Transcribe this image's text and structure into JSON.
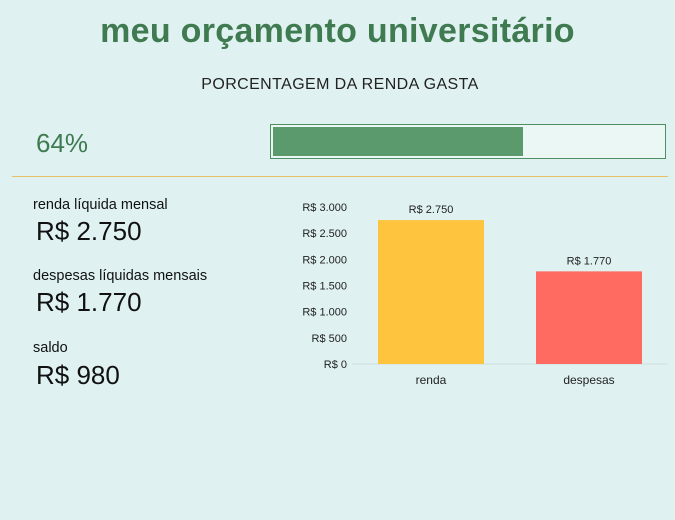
{
  "header": {
    "title": "meu orçamento universitário",
    "subtitle": "PORCENTAGEM DA RENDA GASTA"
  },
  "progress": {
    "label": "64%",
    "value": 64,
    "color": "#5a9a6c"
  },
  "metrics": {
    "income": {
      "label": "renda líquida mensal",
      "value": "R$ 2.750"
    },
    "expenses": {
      "label": "despesas líquidas mensais",
      "value": "R$ 1.770"
    },
    "balance": {
      "label": "saldo",
      "value": "R$ 980"
    }
  },
  "chart_data": {
    "type": "bar",
    "categories": [
      "renda",
      "despesas"
    ],
    "values": [
      2750,
      1770
    ],
    "data_labels": [
      "R$ 2.750",
      "R$ 1.770"
    ],
    "colors": [
      "#ffc43d",
      "#ff6b61"
    ],
    "ylim": [
      0,
      3000
    ],
    "y_ticks": [
      {
        "value": 0,
        "label": "R$ 0"
      },
      {
        "value": 500,
        "label": "R$ 500"
      },
      {
        "value": 1000,
        "label": "R$ 1.000"
      },
      {
        "value": 1500,
        "label": "R$ 1.500"
      },
      {
        "value": 2000,
        "label": "R$ 2.000"
      },
      {
        "value": 2500,
        "label": "R$ 2.500"
      },
      {
        "value": 3000,
        "label": "R$ 3.000"
      }
    ],
    "grid": false
  }
}
